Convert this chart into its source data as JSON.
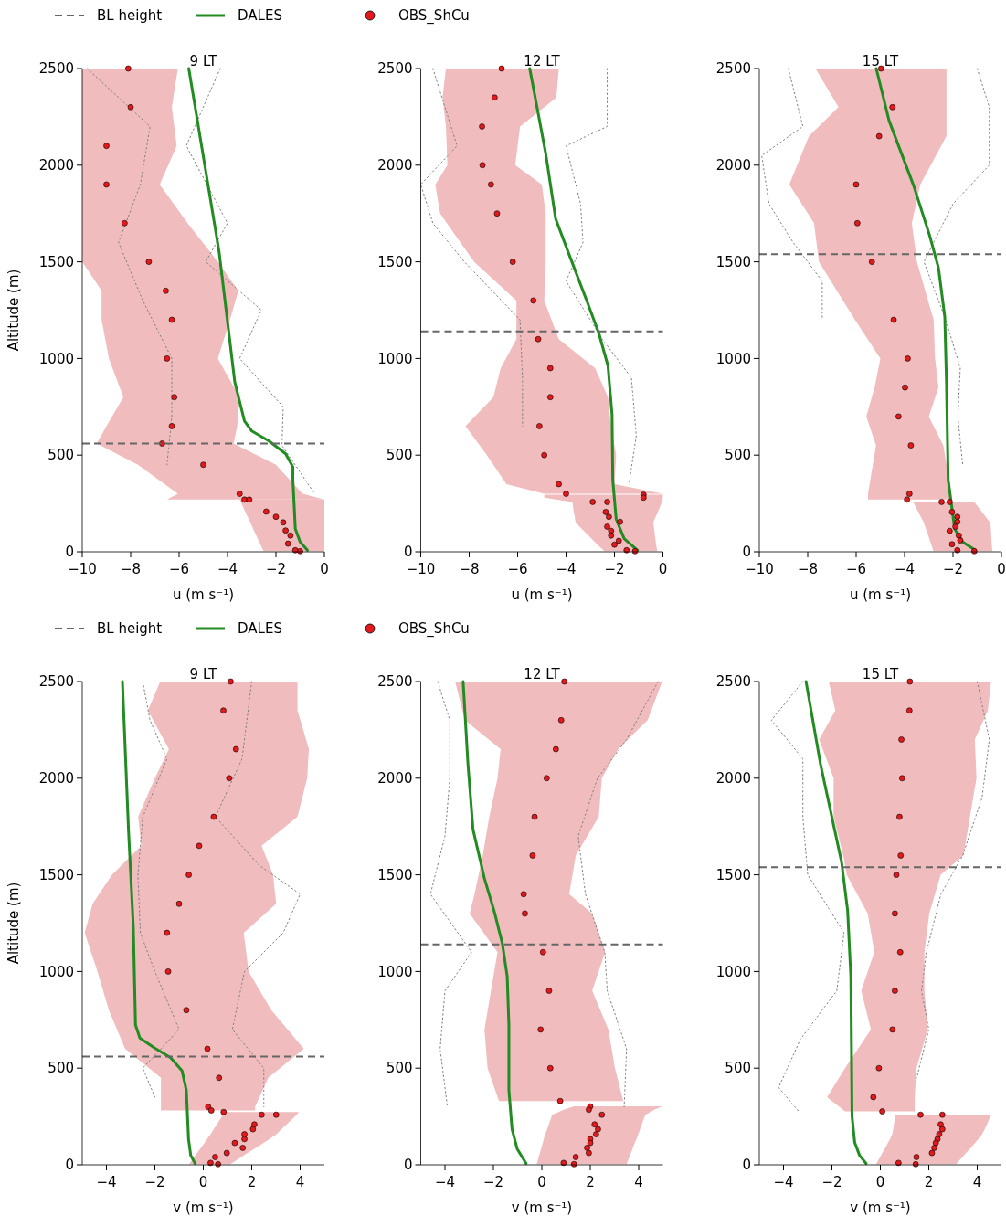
{
  "chart_data": [
    {
      "type": "line",
      "orientation": "horizontal",
      "title": "9 LT",
      "xlabel": "u (m s⁻¹)",
      "ylabel": "Altitude (m)",
      "xlim": [
        -10,
        0
      ],
      "xticks": [
        -10,
        -8,
        -6,
        -4,
        -2,
        0
      ],
      "ylim": [
        0,
        2500
      ],
      "yticks": [
        0,
        500,
        1000,
        1500,
        2000,
        2500
      ],
      "legend": "top",
      "ref_lines": [
        {
          "axis": "y",
          "value": 560,
          "label": "BL height",
          "color": "#666666",
          "line_style": "dashed"
        }
      ],
      "series": [
        {
          "color": "#808080",
          "line_style": "dotted",
          "x": [
            2500,
            2100,
            1700,
            1500,
            1250,
            1000,
            750,
            550,
            300
          ],
          "values": [
            -4.3,
            -5.7,
            -4.0,
            -4.9,
            -2.6,
            -3.5,
            -1.7,
            -1.75,
            -0.4
          ]
        },
        {
          "color": "#808080",
          "line_style": "dotted",
          "x": [
            2500,
            2200,
            1900,
            1600,
            1300,
            1000,
            700,
            450
          ],
          "values": [
            -9.8,
            -7.2,
            -7.6,
            -8.5,
            -7.5,
            -6.3,
            -6.3,
            -6.5
          ]
        },
        {
          "name": "DALES",
          "color": "#228b22",
          "x": [
            2500,
            1554,
            878,
            676,
            625,
            574,
            507,
            439,
            372,
            118,
            51,
            8
          ],
          "values": [
            -5.6,
            -4.35,
            -3.7,
            -3.3,
            -3.0,
            -2.3,
            -1.6,
            -1.3,
            -1.3,
            -1.2,
            -1.0,
            -0.7
          ]
        },
        {
          "type": "scatter",
          "name": "OBS_ShCu",
          "color": "#e31a1c",
          "marker": "circle",
          "x": [
            2500,
            2300,
            2100,
            1900,
            1700,
            1500,
            1350,
            1200,
            1000,
            800,
            650,
            560,
            450,
            300,
            270
          ],
          "values": [
            -8.1,
            -8.0,
            -9.0,
            -9.0,
            -8.25,
            -7.25,
            -6.55,
            -6.3,
            -6.5,
            -6.2,
            -6.3,
            -6.7,
            -5.0,
            -3.5,
            -3.3
          ],
          "lower": [
            -10,
            -10,
            -10,
            -10,
            -10,
            -10,
            -9.2,
            -9.2,
            -8.9,
            -8.3,
            -9.0,
            -9.4,
            -7.7,
            -6.05,
            -6.5
          ],
          "upper": [
            -6.05,
            -6.3,
            -6.1,
            -6.8,
            -5.65,
            -4.4,
            -3.55,
            -3.9,
            -4.4,
            -3.5,
            -3.6,
            -3.75,
            -2.0,
            -0.9,
            0
          ]
        },
        {
          "type": "scatter",
          "color": "#e31a1c",
          "marker": "circle",
          "x": [
            270,
            208,
            181,
            152,
            110,
            84,
            42,
            8,
            3
          ],
          "values": [
            -3.1,
            -2.4,
            -2.0,
            -1.7,
            -1.6,
            -1.4,
            -1.5,
            -1.2,
            -1.0
          ],
          "lower": [
            -3.5,
            -3.27,
            -3.17,
            -3.06,
            -2.91,
            -2.81,
            -2.66,
            -2.53,
            -2.51
          ],
          "upper": [
            0,
            0,
            0,
            0,
            0,
            0,
            0,
            0,
            0
          ]
        }
      ]
    },
    {
      "type": "line",
      "orientation": "horizontal",
      "title": "12 LT",
      "xlabel": "u (m s⁻¹)",
      "xlim": [
        -10,
        0
      ],
      "xticks": [
        -10,
        -8,
        -6,
        -4,
        -2,
        0
      ],
      "ylim": [
        0,
        2500
      ],
      "yticks": [
        0,
        500,
        1000,
        1500,
        2000,
        2500
      ],
      "ref_lines": [
        {
          "axis": "y",
          "value": 1140,
          "color": "#666666",
          "line_style": "dashed"
        }
      ],
      "series": [
        {
          "color": "#808080",
          "line_style": "dotted",
          "x": [
            2500,
            2200,
            2100,
            1800,
            1600,
            1400,
            1100,
            900,
            600,
            350
          ],
          "values": [
            -2.3,
            -2.3,
            -4.0,
            -3.4,
            -3.3,
            -4.0,
            -2.5,
            -1.3,
            -1.1,
            -1.4
          ]
        },
        {
          "color": "#808080",
          "line_style": "dotted",
          "x": [
            2500,
            2100,
            1900,
            1700,
            1500,
            1200,
            900,
            650
          ],
          "values": [
            -9.5,
            -8.5,
            -10,
            -9.5,
            -8.2,
            -5.9,
            -5.8,
            -5.8
          ]
        },
        {
          "color": "#228b22",
          "x": [
            2500,
            2061,
            1723,
            1520,
            1301,
            1132,
            963,
            709,
            372,
            169,
            68,
            8
          ],
          "values": [
            -5.5,
            -4.84,
            -4.43,
            -3.82,
            -3.15,
            -2.65,
            -2.27,
            -2.1,
            -2.07,
            -1.93,
            -1.6,
            -1.05
          ]
        },
        {
          "type": "scatter",
          "color": "#e31a1c",
          "marker": "circle",
          "x": [
            2500,
            2350,
            2200,
            2000,
            1900,
            1750,
            1500,
            1300,
            1100,
            950,
            800,
            650,
            500,
            350,
            300
          ],
          "values": [
            -6.66,
            -6.95,
            -7.47,
            -7.45,
            -7.1,
            -6.85,
            -6.2,
            -5.35,
            -5.15,
            -4.65,
            -4.65,
            -5.1,
            -4.9,
            -4.3,
            -4.0
          ],
          "lower": [
            -8.96,
            -9.1,
            -8.96,
            -8.9,
            -9.4,
            -9.2,
            -7.8,
            -6.05,
            -6.05,
            -6.7,
            -7.0,
            -8.15,
            -7.27,
            -6.46,
            -4.9
          ],
          "upper": [
            -4.3,
            -4.4,
            -5.9,
            -6.1,
            -5.0,
            -4.84,
            -4.84,
            -4.9,
            -4.3,
            -2.8,
            -2.27,
            -2.14,
            -1.93,
            -2.0,
            0
          ]
        },
        {
          "type": "scatter",
          "color": "#e31a1c",
          "marker": "circle",
          "x": [
            295,
            280,
            258,
            258,
            206,
            181,
            155,
            130,
            108,
            84,
            57,
            37,
            8,
            3
          ],
          "values": [
            -0.8,
            -0.8,
            -2.9,
            -2.3,
            -2.36,
            -2.23,
            -1.77,
            -2.3,
            -2.14,
            -2.14,
            -1.82,
            -2.0,
            -1.5,
            -1.15
          ],
          "lower": [
            -4.9,
            -4.9,
            -3.74,
            -3.74,
            -3.68,
            -3.64,
            -3.61,
            -3.44,
            -3.26,
            -3.07,
            -2.86,
            -2.7,
            -2.46,
            -2.42
          ],
          "upper": [
            0,
            0,
            -0.04,
            -0.04,
            -0.21,
            -0.3,
            -0.39,
            -0.38,
            -0.35,
            -0.33,
            -0.3,
            -0.28,
            -0.24,
            -0.24
          ]
        }
      ]
    },
    {
      "type": "line",
      "orientation": "horizontal",
      "title": "15 LT",
      "xlabel": "u (m s⁻¹)",
      "xlim": [
        -10,
        0
      ],
      "xticks": [
        -10,
        -8,
        -6,
        -4,
        -2,
        0
      ],
      "ylim": [
        0,
        2500
      ],
      "yticks": [
        0,
        500,
        1000,
        1500,
        2000,
        2500
      ],
      "ref_lines": [
        {
          "axis": "y",
          "value": 1540,
          "color": "#666666",
          "line_style": "dashed"
        }
      ],
      "series": [
        {
          "color": "#808080",
          "line_style": "dotted",
          "x": [
            2500,
            2300,
            2000,
            1800,
            1500,
            1200,
            950,
            700,
            450
          ],
          "values": [
            -1.0,
            -0.5,
            -0.5,
            -2.0,
            -3.2,
            -2.3,
            -1.7,
            -1.8,
            -1.6
          ]
        },
        {
          "color": "#808080",
          "line_style": "dotted",
          "x": [
            2500,
            2200,
            2050,
            1800,
            1600,
            1400,
            1200
          ],
          "values": [
            -8.8,
            -8.2,
            -9.9,
            -9.6,
            -8.6,
            -7.4,
            -7.4
          ]
        },
        {
          "color": "#228b22",
          "x": [
            2500,
            2230,
            1892,
            1638,
            1469,
            1216,
            878,
            372,
            118,
            51,
            8
          ],
          "values": [
            -5.17,
            -4.64,
            -3.62,
            -2.97,
            -2.6,
            -2.34,
            -2.27,
            -2.2,
            -1.93,
            -1.6,
            -1.08
          ]
        },
        {
          "type": "scatter",
          "color": "#e31a1c",
          "marker": "circle",
          "x": [
            2500,
            2300,
            2150,
            1900,
            1700,
            1500,
            1200,
            1000,
            850,
            700,
            550,
            300,
            270
          ],
          "values": [
            -4.97,
            -4.5,
            -5.05,
            -6.0,
            -5.95,
            -5.35,
            -4.45,
            -3.87,
            -3.98,
            -4.25,
            -3.74,
            -3.8,
            -3.9
          ],
          "lower": [
            -7.68,
            -6.73,
            -7.95,
            -8.76,
            -7.74,
            -7.54,
            -6.05,
            -5.0,
            -5.24,
            -5.58,
            -5.18,
            -5.51,
            -5.51
          ],
          "upper": [
            -2.27,
            -2.27,
            -2.27,
            -3.35,
            -3.7,
            -3.49,
            -2.8,
            -2.74,
            -2.6,
            -3.0,
            -2.4,
            -2.07,
            -2.07
          ]
        },
        {
          "type": "scatter",
          "color": "#e31a1c",
          "marker": "circle",
          "x": [
            258,
            258,
            206,
            181,
            155,
            130,
            108,
            84,
            59,
            39,
            8,
            3
          ],
          "values": [
            -2.47,
            -2.14,
            -2.04,
            -1.82,
            -1.82,
            -1.9,
            -2.14,
            -1.76,
            -1.7,
            -2.04,
            -1.82,
            -1.12
          ],
          "lower": [
            -3.64,
            -3.64,
            -3.43,
            -3.33,
            -3.22,
            -3.15,
            -3.09,
            -3.02,
            -2.96,
            -2.9,
            -2.82,
            -2.81
          ],
          "upper": [
            -1.12,
            -1.12,
            -0.8,
            -0.65,
            -0.48,
            -0.44,
            -0.43,
            -0.42,
            -0.41,
            -0.4,
            -0.38,
            -0.38
          ]
        }
      ]
    },
    {
      "type": "line",
      "orientation": "horizontal",
      "title": "9 LT",
      "xlabel": "v (m s⁻¹)",
      "ylabel": "Altitude (m)",
      "xlim": [
        -5,
        5
      ],
      "xticks": [
        -4,
        -2,
        0,
        2,
        4
      ],
      "ylim": [
        0,
        2500
      ],
      "yticks": [
        0,
        500,
        1000,
        1500,
        2000,
        2500
      ],
      "legend": "top",
      "ref_lines": [
        {
          "axis": "y",
          "value": 560,
          "label": "BL height",
          "color": "#666666",
          "line_style": "dashed"
        }
      ],
      "series": [
        {
          "color": "#808080",
          "line_style": "dotted",
          "x": [
            2500,
            2300,
            2100,
            1800,
            1500,
            1200,
            1000,
            700,
            500,
            350
          ],
          "values": [
            -2.5,
            -2.2,
            -1.5,
            -2.5,
            -2.7,
            -2.6,
            -2.0,
            -1.0,
            -2.5,
            -2.0
          ]
        },
        {
          "color": "#808080",
          "line_style": "dotted",
          "x": [
            2500,
            2100,
            1800,
            1550,
            1400,
            1200,
            1000,
            700,
            500,
            300
          ],
          "values": [
            2.0,
            1.6,
            0.5,
            2.3,
            4.0,
            3.3,
            1.7,
            1.2,
            2.5,
            2.5
          ]
        },
        {
          "name": "DALES",
          "color": "#228b22",
          "x": [
            2500,
            1734,
            1228,
            723,
            656,
            605,
            554,
            487,
            386,
            133,
            49,
            7
          ],
          "values": [
            -3.34,
            -3.09,
            -2.89,
            -2.8,
            -2.62,
            -2.02,
            -1.35,
            -0.88,
            -0.7,
            -0.61,
            -0.52,
            -0.34
          ]
        },
        {
          "type": "scatter",
          "name": "OBS_ShCu",
          "color": "#e31a1c",
          "marker": "circle",
          "x": [
            2500,
            2350,
            2150,
            2000,
            1800,
            1650,
            1500,
            1350,
            1200,
            1000,
            800,
            600,
            450,
            300,
            281
          ],
          "values": [
            1.13,
            0.83,
            1.35,
            1.07,
            0.43,
            -0.17,
            -0.6,
            -1.0,
            -1.5,
            -1.45,
            -0.7,
            0.17,
            0.65,
            0.2,
            0.33
          ],
          "lower": [
            -1.78,
            -2.29,
            -1.42,
            -2.0,
            -2.69,
            -2.56,
            -3.77,
            -4.57,
            -4.9,
            -4.37,
            -3.9,
            -3.23,
            -1.75,
            -1.75,
            -1.75
          ],
          "upper": [
            3.89,
            3.89,
            4.36,
            4.29,
            3.89,
            2.41,
            2.88,
            3.01,
            1.67,
            1.87,
            2.81,
            4.15,
            2.68,
            2.14,
            2.14
          ]
        },
        {
          "type": "scatter",
          "color": "#e31a1c",
          "marker": "circle",
          "x": [
            273,
            259,
            259,
            209,
            184,
            158,
            133,
            113,
            88,
            61,
            40,
            10,
            3
          ],
          "values": [
            0.84,
            2.41,
            3.01,
            2.11,
            2.05,
            1.7,
            1.7,
            1.3,
            1.63,
            0.97,
            0.49,
            0.3,
            0.61
          ],
          "lower": [
            0.8,
            0.81,
            0.81,
            0.56,
            0.43,
            0.3,
            0.16,
            0.05,
            -0.1,
            -0.26,
            -0.38,
            -0.55,
            -0.59
          ],
          "upper": [
            3.95,
            3.86,
            3.86,
            3.44,
            3.23,
            3.02,
            2.74,
            2.49,
            2.17,
            1.83,
            1.57,
            1.2,
            1.11
          ]
        }
      ]
    },
    {
      "type": "line",
      "orientation": "horizontal",
      "title": "12 LT",
      "xlabel": "v (m s⁻¹)",
      "xlim": [
        -5,
        5
      ],
      "xticks": [
        -4,
        -2,
        0,
        2,
        4
      ],
      "ylim": [
        0,
        2500
      ],
      "yticks": [
        0,
        500,
        1000,
        1500,
        2000,
        2500
      ],
      "ref_lines": [
        {
          "axis": "y",
          "value": 1140,
          "color": "#666666",
          "line_style": "dashed"
        }
      ],
      "series": [
        {
          "color": "#808080",
          "line_style": "dotted",
          "x": [
            2500,
            2300,
            2000,
            1700,
            1400,
            1100,
            900,
            600,
            300
          ],
          "values": [
            -4.3,
            -3.8,
            -3.8,
            -4.0,
            -4.6,
            -2.9,
            -4.0,
            -4.2,
            -3.9
          ]
        },
        {
          "color": "#808080",
          "line_style": "dotted",
          "x": [
            2500,
            2200,
            2000,
            1700,
            1400,
            1100,
            900,
            600,
            300
          ],
          "values": [
            4.8,
            3.5,
            2.3,
            1.5,
            1.8,
            2.6,
            2.7,
            3.5,
            3.4
          ]
        },
        {
          "color": "#228b22",
          "x": [
            2500,
            2071,
            1734,
            1481,
            1313,
            1144,
            975,
            723,
            386,
            184,
            83,
            7
          ],
          "values": [
            -3.25,
            -3.05,
            -2.84,
            -2.37,
            -1.97,
            -1.63,
            -1.43,
            -1.36,
            -1.36,
            -1.23,
            -1.02,
            -0.65
          ]
        },
        {
          "type": "scatter",
          "color": "#e31a1c",
          "marker": "circle",
          "x": [
            2500,
            2300,
            2150,
            2000,
            1800,
            1600,
            1400,
            1300,
            1100,
            900,
            700,
            500,
            330
          ],
          "values": [
            0.93,
            0.8,
            0.58,
            0.2,
            -0.3,
            -0.38,
            -0.75,
            -0.7,
            0.05,
            0.3,
            -0.05,
            0.35,
            0.76
          ],
          "lower": [
            -3.58,
            -3.18,
            -1.7,
            -1.83,
            -2.17,
            -2.44,
            -2.78,
            -2.98,
            -1.83,
            -2.1,
            -2.37,
            -2.24,
            -1.77
          ],
          "upper": [
            4.97,
            4.37,
            3.15,
            2.48,
            2.35,
            1.4,
            1.13,
            2.08,
            2.61,
            2.08,
            2.75,
            3.02,
            3.36
          ]
        },
        {
          "type": "scatter",
          "color": "#e31a1c",
          "marker": "circle",
          "x": [
            302,
            285,
            259,
            209,
            184,
            158,
            133,
            113,
            88,
            61,
            40,
            10,
            3
          ],
          "values": [
            2.0,
            1.94,
            2.48,
            2.18,
            2.32,
            2.24,
            2.0,
            2.0,
            1.87,
            1.94,
            1.4,
            0.9,
            1.33
          ],
          "lower": [
            1.33,
            0.9,
            0.43,
            0.29,
            0.22,
            0.14,
            0.08,
            0.04,
            -0.02,
            -0.08,
            -0.13,
            -0.2,
            -0.21
          ],
          "upper": [
            4.97,
            4.64,
            4.27,
            4.13,
            4.06,
            3.98,
            3.91,
            3.84,
            3.76,
            3.68,
            3.61,
            3.52,
            3.5
          ]
        }
      ]
    },
    {
      "type": "line",
      "orientation": "horizontal",
      "title": "15 LT",
      "xlabel": "v (m s⁻¹)",
      "xlim": [
        -5,
        5
      ],
      "xticks": [
        -4,
        -2,
        0,
        2,
        4
      ],
      "ylim": [
        0,
        2500
      ],
      "yticks": [
        0,
        500,
        1000,
        1500,
        2000,
        2500
      ],
      "ref_lines": [
        {
          "axis": "y",
          "value": 1540,
          "color": "#666666",
          "line_style": "dashed"
        }
      ],
      "series": [
        {
          "color": "#808080",
          "line_style": "dotted",
          "x": [
            2500,
            2300,
            2100,
            1800,
            1500,
            1200,
            900,
            650,
            400,
            280
          ],
          "values": [
            -3.2,
            -4.5,
            -3.2,
            -3.2,
            -3.0,
            -1.5,
            -1.8,
            -3.3,
            -4.2,
            -3.4
          ]
        },
        {
          "color": "#808080",
          "line_style": "dotted",
          "x": [
            2500,
            2200,
            1900,
            1600,
            1400,
            1100,
            900,
            700,
            450
          ],
          "values": [
            4.0,
            4.5,
            4.2,
            3.4,
            2.5,
            1.9,
            1.7,
            2.0,
            1.5
          ]
        },
        {
          "color": "#228b22",
          "x": [
            2500,
            2071,
            1734,
            1565,
            1313,
            975,
            554,
            251,
            116,
            49,
            7
          ],
          "values": [
            -3.07,
            -2.47,
            -1.89,
            -1.6,
            -1.35,
            -1.22,
            -1.19,
            -1.17,
            -1.06,
            -0.86,
            -0.59
          ]
        },
        {
          "type": "scatter",
          "color": "#e31a1c",
          "marker": "circle",
          "x": [
            2500,
            2350,
            2200,
            2000,
            1800,
            1600,
            1500,
            1300,
            1100,
            900,
            700,
            500,
            350,
            276
          ],
          "values": [
            1.22,
            1.2,
            0.87,
            0.9,
            0.79,
            0.84,
            0.66,
            0.6,
            0.82,
            0.6,
            0.5,
            -0.06,
            -0.29,
            0.08
          ],
          "lower": [
            -2.13,
            -1.86,
            -2.53,
            -1.93,
            -1.93,
            -1.53,
            -1.39,
            -0.52,
            -0.25,
            -0.79,
            -0.39,
            -1.46,
            -2.2,
            -1.46
          ],
          "upper": [
            4.57,
            4.44,
            3.9,
            3.97,
            3.7,
            3.43,
            2.49,
            2.02,
            1.82,
            1.82,
            1.96,
            1.49,
            1.42,
            1.42
          ]
        },
        {
          "type": "scatter",
          "color": "#e31a1c",
          "marker": "circle",
          "x": [
            259,
            259,
            209,
            184,
            158,
            133,
            113,
            88,
            61,
            40,
            10,
            3
          ],
          "values": [
            1.66,
            2.56,
            2.49,
            2.56,
            2.43,
            2.36,
            2.29,
            2.23,
            2.13,
            1.49,
            0.75,
            1.46
          ],
          "lower": [
            0.62,
            0.62,
            0.56,
            0.53,
            0.49,
            0.4,
            0.31,
            0.2,
            0.08,
            -0.01,
            -0.15,
            -0.18
          ],
          "upper": [
            4.57,
            4.57,
            4.4,
            4.31,
            4.2,
            4.05,
            3.91,
            3.73,
            3.54,
            3.39,
            3.17,
            3.12
          ]
        }
      ]
    }
  ]
}
